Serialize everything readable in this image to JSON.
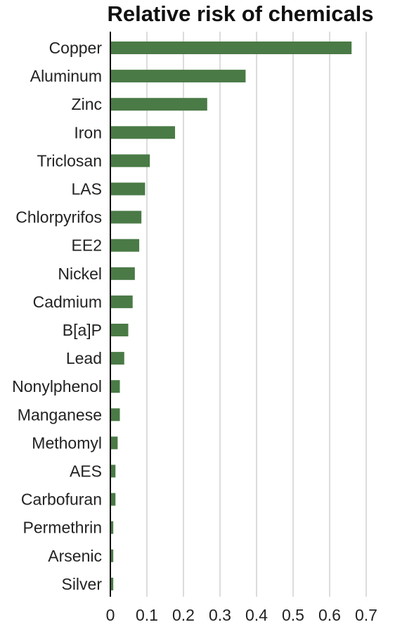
{
  "chart_data": {
    "type": "bar",
    "orientation": "horizontal",
    "title": "Relative risk of chemicals",
    "xlabel": "",
    "ylabel": "",
    "categories": [
      "Copper",
      "Aluminum",
      "Zinc",
      "Iron",
      "Triclosan",
      "LAS",
      "Chlorpyrifos",
      "EE2",
      "Nickel",
      "Cadmium",
      "B[a]P",
      "Lead",
      "Nonylphenol",
      "Manganese",
      "Methomyl",
      "AES",
      "Carbofuran",
      "Permethrin",
      "Arsenic",
      "Silver"
    ],
    "values": [
      0.66,
      0.37,
      0.265,
      0.177,
      0.108,
      0.095,
      0.085,
      0.079,
      0.067,
      0.061,
      0.049,
      0.038,
      0.026,
      0.026,
      0.02,
      0.014,
      0.014,
      0.008,
      0.008,
      0.008
    ],
    "xlim": [
      0,
      0.7
    ],
    "xticks": [
      0,
      0.1,
      0.2,
      0.3,
      0.4,
      0.5,
      0.6,
      0.7
    ],
    "xtick_labels": [
      "0",
      "0.1",
      "0.2",
      "0.3",
      "0.4",
      "0.5",
      "0.6",
      "0.7"
    ],
    "grid": "vertical",
    "bar_color": "#4a7a46",
    "grid_color": "#d0d0d0",
    "axis_color": "#111111"
  }
}
